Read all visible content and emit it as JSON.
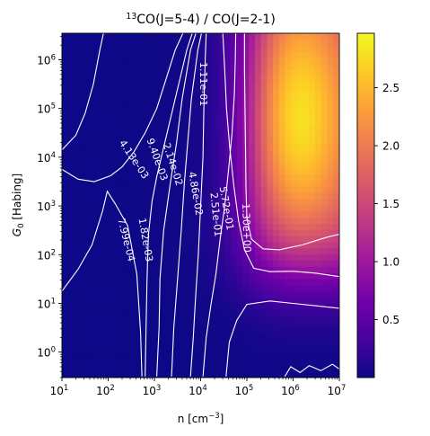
{
  "chart_data": {
    "type": "heatmap",
    "title_base": "CO(J=5-4) / CO(J=2-1)",
    "title_prefix_sup": "13",
    "xlabel_base": "n [cm",
    "xlabel_sup": "−3",
    "xlabel_end": "]",
    "ylabel_italic": "G",
    "ylabel_sub": "0",
    "ylabel_rest": " [Habing]",
    "x_scale": "log",
    "y_scale": "log",
    "xlim": [
      10,
      10000000
    ],
    "ylim": [
      0.3,
      3500000
    ],
    "x_ticks": [
      {
        "value": 10,
        "base": "10",
        "exp": "1"
      },
      {
        "value": 100,
        "base": "10",
        "exp": "2"
      },
      {
        "value": 1000,
        "base": "10",
        "exp": "3"
      },
      {
        "value": 10000,
        "base": "10",
        "exp": "4"
      },
      {
        "value": 100000,
        "base": "10",
        "exp": "5"
      },
      {
        "value": 1000000,
        "base": "10",
        "exp": "6"
      },
      {
        "value": 10000000,
        "base": "10",
        "exp": "7"
      }
    ],
    "y_ticks": [
      {
        "value": 1,
        "base": "10",
        "exp": "0"
      },
      {
        "value": 10,
        "base": "10",
        "exp": "1"
      },
      {
        "value": 100,
        "base": "10",
        "exp": "2"
      },
      {
        "value": 1000,
        "base": "10",
        "exp": "3"
      },
      {
        "value": 10000,
        "base": "10",
        "exp": "4"
      },
      {
        "value": 100000,
        "base": "10",
        "exp": "5"
      },
      {
        "value": 1000000,
        "base": "10",
        "exp": "6"
      }
    ],
    "colormap": "plasma",
    "colorbar": {
      "min": 0.0,
      "max": 2.97,
      "ticks": [
        "0.5",
        "1.0",
        "1.5",
        "2.0",
        "2.5"
      ],
      "tick_values": [
        0.5,
        1.0,
        1.5,
        2.0,
        2.5
      ]
    },
    "contour_levels": [
      {
        "label": "7.99e-04",
        "value": 0.000799
      },
      {
        "label": "1.82e-03",
        "value": 0.00182
      },
      {
        "label": "4.13e-03",
        "value": 0.00413
      },
      {
        "label": "9.40e-03",
        "value": 0.0094
      },
      {
        "label": "2.14e-02",
        "value": 0.0214
      },
      {
        "label": "4.86e-02",
        "value": 0.0486
      },
      {
        "label": "1.11e-01",
        "value": 0.111
      },
      {
        "label": "2.51e-01",
        "value": 0.251
      },
      {
        "label": "5.72e-01",
        "value": 0.572
      },
      {
        "label": "1.30e+00",
        "value": 1.3
      }
    ],
    "colors": {
      "contour": "#ffffff",
      "low": "#0d0887",
      "high": "#f0f921"
    }
  }
}
